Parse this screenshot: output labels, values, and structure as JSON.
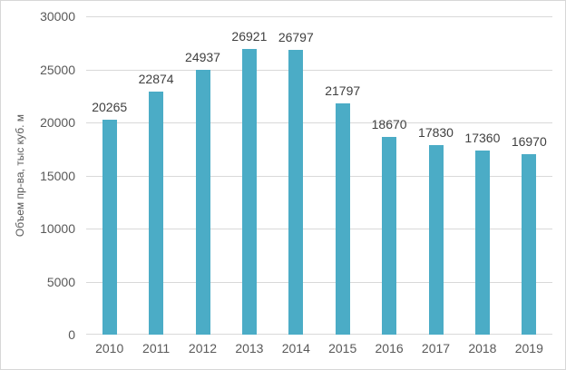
{
  "chart_data": {
    "type": "bar",
    "title": "",
    "categories": [
      "2010",
      "2011",
      "2012",
      "2013",
      "2014",
      "2015",
      "2016",
      "2017",
      "2018",
      "2019"
    ],
    "values": [
      20265,
      22874,
      24937,
      26921,
      26797,
      21797,
      18670,
      17830,
      17360,
      16970
    ],
    "xlabel": "",
    "ylabel": "Объем пр-ва, тыс куб. м",
    "ylim": [
      0,
      30000
    ],
    "yticks": [
      0,
      5000,
      10000,
      15000,
      20000,
      25000,
      30000
    ],
    "grid": true,
    "legend_position": "none",
    "data_labels_shown": true,
    "colors": {
      "bar": "#4BACC6",
      "gridline": "#D9D9D9",
      "axis_line": "#D9D9D9",
      "tick_text": "#595959",
      "data_label_text": "#404040",
      "border": "#D7D7D7",
      "background": "#FFFFFF"
    }
  }
}
